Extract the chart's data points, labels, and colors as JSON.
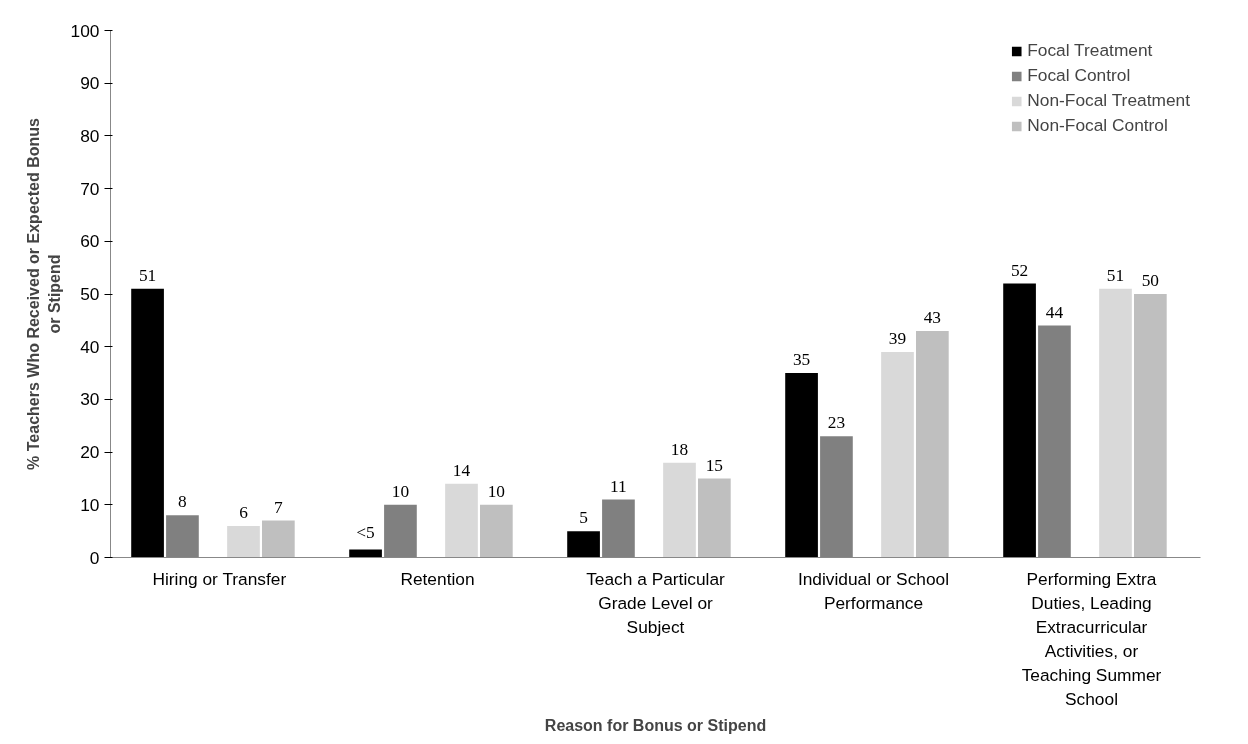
{
  "chart_data": {
    "type": "bar",
    "xlabel": "Reason for Bonus or Stipend",
    "ylabel": "% Teachers Who Received or Expected Bonus or Stipend",
    "categories": [
      "Hiring or Transfer",
      "Retention",
      "Teach a Particular Grade Level or Subject",
      "Individual or School Performance",
      "Performing Extra Duties, Leading Extracurricular Activities, or Teaching Summer School"
    ],
    "series": [
      {
        "name": "Focal Treatment",
        "color": "#000000",
        "values": [
          51,
          1.5,
          5,
          35,
          52
        ],
        "value_labels": [
          "51",
          "<5",
          "5",
          "35",
          "52"
        ]
      },
      {
        "name": "Focal Control",
        "color": "#808080",
        "values": [
          8,
          10,
          11,
          23,
          44
        ],
        "value_labels": [
          "8",
          "10",
          "11",
          "23",
          "44"
        ]
      },
      {
        "name": "Non-Focal Treatment",
        "color": "#d9d9d9",
        "values": [
          6,
          14,
          18,
          39,
          51
        ],
        "value_labels": [
          "6",
          "14",
          "18",
          "39",
          "51"
        ]
      },
      {
        "name": "Non-Focal Control",
        "color": "#bfbfbf",
        "values": [
          7,
          10,
          15,
          43,
          50
        ],
        "value_labels": [
          "7",
          "10",
          "15",
          "43",
          "50"
        ]
      }
    ],
    "ylim": [
      0,
      100
    ],
    "yticks": [
      0,
      10,
      20,
      30,
      40,
      50,
      60,
      70,
      80,
      90,
      100
    ],
    "grid": false,
    "legend": "top right"
  }
}
